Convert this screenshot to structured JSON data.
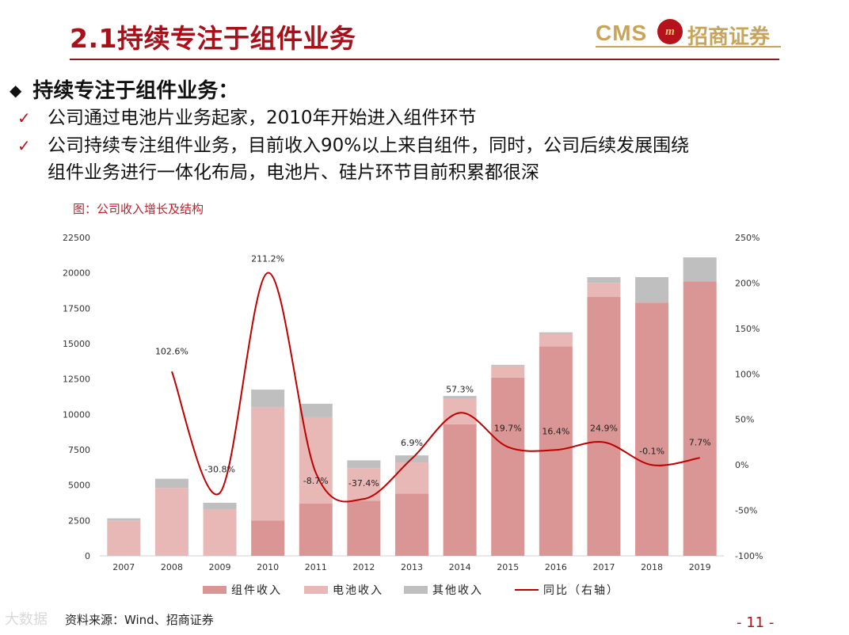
{
  "slide": {
    "title": "2.1持续专注于组件业务",
    "page_number": "- 11 -",
    "source": "资料来源：Wind、招商证券",
    "watermark": "大数据"
  },
  "brand": {
    "cms": "CMS",
    "mark": "m",
    "name": "招商证券"
  },
  "content": {
    "heading": "持续专注于组件业务：",
    "heading_icon": "diamond-bullet",
    "points": [
      "公司通过电池片业务起家，2010年开始进入组件环节",
      "公司持续专注组件业务，目前收入90%以上来自组件，同时，公司后续发展围绕",
      "组件业务进行一体化布局，电池片、硅片环节目前积累都很深"
    ]
  },
  "colors": {
    "accent": "#a8101a",
    "module": "#d99694",
    "cell": "#e8b8b7",
    "other": "#bfbfbf",
    "line": "#c00000"
  },
  "chart_data": {
    "type": "bar",
    "stacked": true,
    "title": "图：公司收入增长及结构",
    "categories": [
      "2007",
      "2008",
      "2009",
      "2010",
      "2011",
      "2012",
      "2013",
      "2014",
      "2015",
      "2016",
      "2017",
      "2018",
      "2019"
    ],
    "ylim": [
      0,
      22500
    ],
    "y_ticks": [
      0,
      2500,
      5000,
      7500,
      10000,
      12500,
      15000,
      17500,
      20000,
      22500
    ],
    "y2lim": [
      -100,
      250
    ],
    "y2_ticks": [
      "-100%",
      "-50%",
      "0%",
      "50%",
      "100%",
      "150%",
      "200%",
      "250%"
    ],
    "y2_tick_values": [
      -100,
      -50,
      0,
      50,
      100,
      150,
      200,
      250
    ],
    "series": [
      {
        "name": "组件收入",
        "values": [
          0,
          0,
          0,
          2500,
          3700,
          3900,
          4400,
          9300,
          12600,
          14800,
          18300,
          17900,
          19400
        ]
      },
      {
        "name": "电池收入",
        "values": [
          2500,
          4800,
          3300,
          8000,
          6100,
          2300,
          2200,
          1800,
          800,
          900,
          1000,
          0,
          0
        ]
      },
      {
        "name": "其他收入",
        "values": [
          150,
          650,
          450,
          1250,
          950,
          550,
          500,
          200,
          100,
          100,
          400,
          1800,
          1700
        ]
      }
    ],
    "line": {
      "name": "同比（右轴）",
      "axis": "right",
      "values": [
        null,
        102.6,
        -30.8,
        211.2,
        -8.7,
        -37.4,
        6.9,
        57.3,
        19.7,
        16.4,
        24.9,
        -0.1,
        7.7
      ],
      "labels": [
        "",
        "102.6%",
        "-30.8%",
        "211.2%",
        "-8.7%",
        "-37.4%",
        "6.9%",
        "57.3%",
        "19.7%",
        "16.4%",
        "24.9%",
        "-0.1%",
        "7.7%"
      ]
    },
    "legend": [
      "组件收入",
      "电池收入",
      "其他收入",
      "同比（右轴）"
    ],
    "legend_position": "bottom"
  }
}
